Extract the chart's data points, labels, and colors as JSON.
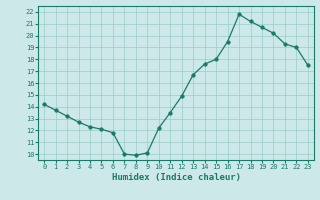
{
  "x": [
    0,
    1,
    2,
    3,
    4,
    5,
    6,
    7,
    8,
    9,
    10,
    11,
    12,
    13,
    14,
    15,
    16,
    17,
    18,
    19,
    20,
    21,
    22,
    23
  ],
  "y": [
    14.2,
    13.7,
    13.2,
    12.7,
    12.3,
    12.1,
    11.8,
    10.0,
    9.9,
    10.1,
    12.2,
    13.5,
    14.9,
    16.7,
    17.6,
    18.0,
    19.5,
    21.8,
    21.2,
    20.7,
    20.2,
    19.3,
    19.0,
    17.5
  ],
  "xlim": [
    -0.5,
    23.5
  ],
  "ylim": [
    9.5,
    22.5
  ],
  "yticks": [
    10,
    11,
    12,
    13,
    14,
    15,
    16,
    17,
    18,
    19,
    20,
    21,
    22
  ],
  "xticks": [
    0,
    1,
    2,
    3,
    4,
    5,
    6,
    7,
    8,
    9,
    10,
    11,
    12,
    13,
    14,
    15,
    16,
    17,
    18,
    19,
    20,
    21,
    22,
    23
  ],
  "xlabel": "Humidex (Indice chaleur)",
  "line_color": "#1a7a6a",
  "marker": "o",
  "marker_size": 2.5,
  "bg_color": "#cce8e8",
  "grid_color": "#99cccc",
  "label_fontsize": 6.5,
  "tick_fontsize": 5.0
}
